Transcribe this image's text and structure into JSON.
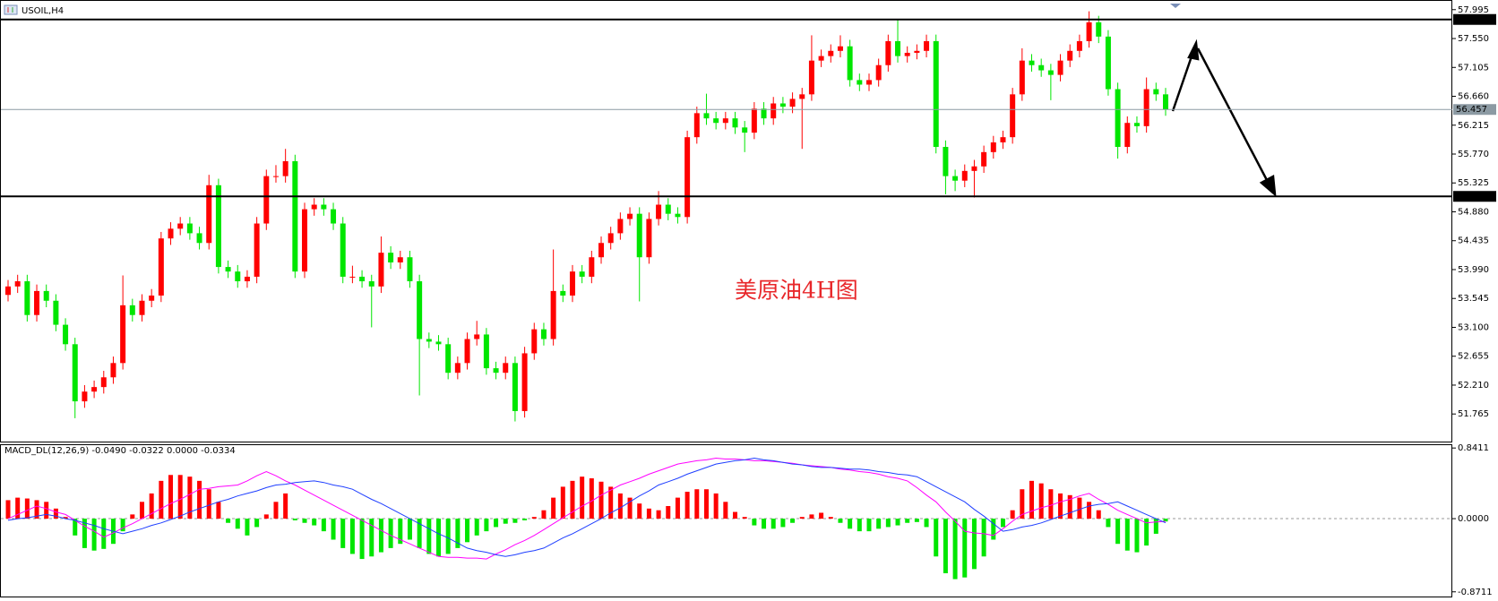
{
  "chart_data": [
    {
      "type": "candlestick",
      "title": "USOIL,H4",
      "annotation": "美原油4H图",
      "up_color": "#ff0000",
      "down_color": "#00e600",
      "ylim": [
        51.34,
        58.13
      ],
      "yticks": [
        57.995,
        {
          "value": 57.55,
          "label": "57.550"
        },
        57.105,
        {
          "value": 56.66,
          "label": "56.660"
        },
        56.215,
        {
          "value": 55.77,
          "label": "55.770"
        },
        55.325,
        {
          "value": 54.88,
          "label": "54.880"
        },
        54.435,
        {
          "value": 53.99,
          "label": "53.990"
        },
        53.545,
        {
          "value": 53.1,
          "label": "53.100"
        },
        52.655,
        {
          "value": 52.21,
          "label": "52.210"
        },
        51.765
      ],
      "levels": [
        57.844,
        55.118
      ],
      "current_price": 56.457,
      "values": [
        [
          53.6,
          53.83,
          53.5,
          53.73
        ],
        [
          53.73,
          53.91,
          53.63,
          53.81
        ],
        [
          53.81,
          53.91,
          53.19,
          53.29
        ],
        [
          53.29,
          53.76,
          53.19,
          53.66
        ],
        [
          53.66,
          53.76,
          53.41,
          53.51
        ],
        [
          53.51,
          53.61,
          53.04,
          53.14
        ],
        [
          53.14,
          53.24,
          52.74,
          52.84
        ],
        [
          52.84,
          52.94,
          51.7,
          51.96
        ],
        [
          51.96,
          52.21,
          51.86,
          52.11
        ],
        [
          52.11,
          52.28,
          52.01,
          52.18
        ],
        [
          52.18,
          52.43,
          52.08,
          52.33
        ],
        [
          52.33,
          52.65,
          52.23,
          52.55
        ],
        [
          52.55,
          53.9,
          52.45,
          53.44
        ],
        [
          53.44,
          53.54,
          53.19,
          53.29
        ],
        [
          53.29,
          53.61,
          53.19,
          53.51
        ],
        [
          53.51,
          53.69,
          53.41,
          53.59
        ],
        [
          53.59,
          54.57,
          53.49,
          54.47
        ],
        [
          54.47,
          54.72,
          54.37,
          54.62
        ],
        [
          54.62,
          54.8,
          54.52,
          54.7
        ],
        [
          54.7,
          54.8,
          54.45,
          54.55
        ],
        [
          54.55,
          54.65,
          54.3,
          54.4
        ],
        [
          54.4,
          55.45,
          54.3,
          55.29
        ],
        [
          55.29,
          55.39,
          53.93,
          54.03
        ],
        [
          54.03,
          54.13,
          53.86,
          53.96
        ],
        [
          53.96,
          54.06,
          53.71,
          53.81
        ],
        [
          53.81,
          53.98,
          53.71,
          53.88
        ],
        [
          53.88,
          54.8,
          53.78,
          54.7
        ],
        [
          54.7,
          55.53,
          54.6,
          55.43
        ],
        [
          55.43,
          55.6,
          55.33,
          55.43
        ],
        [
          55.43,
          55.85,
          55.33,
          55.66
        ],
        [
          55.66,
          55.76,
          53.86,
          53.96
        ],
        [
          53.96,
          55.02,
          53.86,
          54.92
        ],
        [
          54.92,
          55.09,
          54.82,
          54.99
        ],
        [
          54.99,
          55.09,
          54.82,
          54.92
        ],
        [
          54.92,
          55.02,
          54.6,
          54.7
        ],
        [
          54.7,
          54.8,
          53.78,
          53.88
        ],
        [
          53.88,
          54.05,
          53.78,
          53.88
        ],
        [
          53.88,
          53.98,
          53.71,
          53.81
        ],
        [
          53.81,
          53.91,
          53.1,
          53.73
        ],
        [
          53.73,
          54.5,
          53.63,
          54.25
        ],
        [
          54.25,
          54.35,
          54.0,
          54.1
        ],
        [
          54.1,
          54.28,
          54.0,
          54.18
        ],
        [
          54.18,
          54.28,
          53.71,
          53.81
        ],
        [
          53.81,
          53.91,
          52.05,
          52.92
        ],
        [
          52.92,
          53.02,
          52.78,
          52.88
        ],
        [
          52.88,
          52.98,
          52.74,
          52.84
        ],
        [
          52.84,
          52.94,
          52.3,
          52.4
        ],
        [
          52.4,
          52.65,
          52.3,
          52.55
        ],
        [
          52.55,
          53.02,
          52.45,
          52.92
        ],
        [
          52.92,
          53.2,
          52.82,
          52.99
        ],
        [
          52.99,
          53.09,
          52.37,
          52.47
        ],
        [
          52.47,
          52.57,
          52.3,
          52.4
        ],
        [
          52.4,
          52.65,
          52.3,
          52.55
        ],
        [
          52.55,
          52.65,
          51.65,
          51.81
        ],
        [
          51.81,
          52.8,
          51.71,
          52.7
        ],
        [
          52.7,
          53.17,
          52.6,
          53.07
        ],
        [
          53.07,
          53.17,
          52.82,
          52.92
        ],
        [
          52.92,
          54.3,
          52.82,
          53.66
        ],
        [
          53.66,
          53.76,
          53.49,
          53.59
        ],
        [
          53.59,
          54.06,
          53.49,
          53.96
        ],
        [
          53.96,
          54.06,
          53.78,
          53.88
        ],
        [
          53.88,
          54.28,
          53.78,
          54.18
        ],
        [
          54.18,
          54.5,
          54.08,
          54.4
        ],
        [
          54.4,
          54.65,
          54.3,
          54.55
        ],
        [
          54.55,
          54.87,
          54.45,
          54.77
        ],
        [
          54.77,
          54.95,
          54.67,
          54.85
        ],
        [
          54.85,
          54.95,
          53.5,
          54.18
        ],
        [
          54.18,
          54.87,
          54.08,
          54.77
        ],
        [
          54.77,
          55.2,
          54.67,
          54.99
        ],
        [
          54.99,
          55.09,
          54.75,
          54.85
        ],
        [
          54.85,
          54.95,
          54.7,
          54.8
        ],
        [
          54.8,
          56.13,
          54.7,
          56.03
        ],
        [
          56.03,
          56.5,
          55.93,
          56.4
        ],
        [
          56.4,
          56.7,
          56.22,
          56.32
        ],
        [
          56.32,
          56.42,
          56.15,
          56.25
        ],
        [
          56.25,
          56.42,
          56.15,
          56.32
        ],
        [
          56.32,
          56.42,
          56.08,
          56.18
        ],
        [
          56.18,
          56.28,
          55.8,
          56.1
        ],
        [
          56.1,
          56.57,
          56.0,
          56.47
        ],
        [
          56.47,
          56.57,
          56.22,
          56.32
        ],
        [
          56.32,
          56.65,
          56.22,
          56.55
        ],
        [
          56.55,
          56.65,
          56.4,
          56.5
        ],
        [
          56.5,
          56.72,
          56.4,
          56.62
        ],
        [
          56.62,
          56.79,
          55.85,
          56.69
        ],
        [
          56.69,
          57.6,
          56.59,
          57.21
        ],
        [
          57.21,
          57.38,
          57.11,
          57.28
        ],
        [
          57.28,
          57.46,
          57.18,
          57.36
        ],
        [
          57.36,
          57.6,
          57.26,
          57.43
        ],
        [
          57.43,
          57.53,
          56.81,
          56.91
        ],
        [
          56.91,
          57.01,
          56.74,
          56.84
        ],
        [
          56.84,
          57.01,
          56.74,
          56.91
        ],
        [
          56.91,
          57.24,
          56.81,
          57.14
        ],
        [
          57.14,
          57.61,
          57.04,
          57.51
        ],
        [
          57.51,
          57.85,
          57.18,
          57.28
        ],
        [
          57.28,
          57.43,
          57.18,
          57.33
        ],
        [
          57.33,
          57.46,
          57.23,
          57.36
        ],
        [
          57.36,
          57.61,
          57.26,
          57.51
        ],
        [
          57.51,
          57.61,
          55.78,
          55.88
        ],
        [
          55.88,
          55.98,
          55.15,
          55.43
        ],
        [
          55.43,
          55.53,
          55.2,
          55.36
        ],
        [
          55.36,
          55.61,
          55.26,
          55.51
        ],
        [
          55.51,
          55.68,
          55.1,
          55.58
        ],
        [
          55.58,
          55.9,
          55.48,
          55.8
        ],
        [
          55.8,
          56.05,
          55.7,
          55.95
        ],
        [
          55.95,
          56.13,
          55.85,
          56.03
        ],
        [
          56.03,
          56.79,
          55.93,
          56.69
        ],
        [
          56.69,
          57.4,
          56.59,
          57.21
        ],
        [
          57.21,
          57.31,
          57.04,
          57.14
        ],
        [
          57.14,
          57.24,
          56.96,
          57.06
        ],
        [
          57.06,
          57.16,
          56.6,
          56.99
        ],
        [
          56.99,
          57.31,
          56.89,
          57.21
        ],
        [
          57.21,
          57.46,
          57.11,
          57.36
        ],
        [
          57.36,
          57.61,
          57.26,
          57.51
        ],
        [
          57.51,
          57.97,
          57.41,
          57.8
        ],
        [
          57.8,
          57.9,
          57.48,
          57.58
        ],
        [
          57.58,
          57.68,
          56.67,
          56.77
        ],
        [
          56.77,
          56.87,
          55.7,
          55.88
        ],
        [
          55.88,
          56.35,
          55.78,
          56.25
        ],
        [
          56.25,
          56.35,
          56.1,
          56.2
        ],
        [
          56.2,
          56.95,
          56.1,
          56.77
        ],
        [
          56.77,
          56.87,
          56.59,
          56.69
        ],
        [
          56.69,
          56.79,
          56.36,
          56.46
        ]
      ]
    },
    {
      "type": "macd",
      "title": "MACD_DL(12,26,9) -0.0490 -0.0322 0.0000 -0.0334",
      "ylim": [
        -0.927,
        0.875
      ],
      "yticks": [
        0.8411,
        {
          "value": 0,
          "label": "0.0000"
        },
        -0.8711
      ],
      "histogram": {
        "up_color": "#ff0000",
        "down_color": "#00e600",
        "values": [
          0.22,
          0.25,
          0.24,
          0.22,
          0.2,
          0.12,
          0.02,
          -0.2,
          -0.35,
          -0.38,
          -0.36,
          -0.3,
          -0.15,
          0.05,
          0.2,
          0.3,
          0.45,
          0.52,
          0.52,
          0.5,
          0.45,
          0.35,
          0.2,
          -0.05,
          -0.12,
          -0.2,
          -0.1,
          0.05,
          0.2,
          0.3,
          -0.02,
          -0.05,
          -0.08,
          -0.15,
          -0.25,
          -0.35,
          -0.42,
          -0.48,
          -0.45,
          -0.4,
          -0.35,
          -0.3,
          -0.25,
          -0.35,
          -0.42,
          -0.45,
          -0.42,
          -0.35,
          -0.28,
          -0.2,
          -0.15,
          -0.1,
          -0.06,
          -0.05,
          -0.02,
          0.02,
          0.1,
          0.25,
          0.38,
          0.45,
          0.5,
          0.48,
          0.44,
          0.38,
          0.3,
          0.25,
          0.18,
          0.12,
          0.1,
          0.15,
          0.25,
          0.32,
          0.35,
          0.35,
          0.3,
          0.2,
          0.08,
          0.02,
          -0.08,
          -0.12,
          -0.12,
          -0.1,
          -0.05,
          0.02,
          0.05,
          0.07,
          0.02,
          -0.05,
          -0.12,
          -0.15,
          -0.15,
          -0.12,
          -0.1,
          -0.08,
          -0.05,
          -0.04,
          -0.1,
          -0.45,
          -0.65,
          -0.72,
          -0.7,
          -0.6,
          -0.45,
          -0.25,
          -0.1,
          0.1,
          0.35,
          0.45,
          0.42,
          0.35,
          0.3,
          0.28,
          0.25,
          0.2,
          0.1,
          -0.1,
          -0.3,
          -0.38,
          -0.4,
          -0.32,
          -0.18,
          -0.0334
        ]
      },
      "series": [
        {
          "color": "#ff00ff",
          "values": [
            0.0,
            0.05,
            0.1,
            0.15,
            0.12,
            0.08,
            0.05,
            -0.02,
            -0.09,
            -0.15,
            -0.22,
            -0.17,
            -0.11,
            -0.06,
            0.0,
            0.06,
            0.12,
            0.18,
            0.23,
            0.29,
            0.35,
            0.36,
            0.38,
            0.39,
            0.4,
            0.45,
            0.51,
            0.56,
            0.51,
            0.45,
            0.4,
            0.34,
            0.28,
            0.22,
            0.16,
            0.1,
            0.04,
            -0.02,
            -0.08,
            -0.14,
            -0.2,
            -0.25,
            -0.3,
            -0.35,
            -0.4,
            -0.45,
            -0.46,
            -0.46,
            -0.47,
            -0.47,
            -0.48,
            -0.42,
            -0.37,
            -0.31,
            -0.26,
            -0.2,
            -0.13,
            -0.06,
            0.01,
            0.08,
            0.15,
            0.21,
            0.28,
            0.34,
            0.4,
            0.44,
            0.48,
            0.53,
            0.57,
            0.61,
            0.65,
            0.67,
            0.69,
            0.7,
            0.72,
            0.71,
            0.71,
            0.7,
            0.69,
            0.69,
            0.68,
            0.67,
            0.66,
            0.64,
            0.63,
            0.62,
            0.61,
            0.59,
            0.58,
            0.56,
            0.55,
            0.53,
            0.5,
            0.48,
            0.45,
            0.37,
            0.28,
            0.2,
            0.08,
            -0.03,
            -0.15,
            -0.17,
            -0.18,
            -0.2,
            -0.12,
            -0.03,
            0.05,
            0.09,
            0.13,
            0.16,
            0.2,
            0.23,
            0.27,
            0.3,
            0.23,
            0.17,
            0.1,
            0.05,
            0.0,
            -0.05,
            -0.04,
            -0.0322
          ]
        },
        {
          "color": "#1f3fff",
          "values": [
            -0.02,
            0.0,
            0.01,
            0.03,
            0.05,
            0.03,
            0.0,
            -0.02,
            -0.05,
            -0.08,
            -0.12,
            -0.15,
            -0.18,
            -0.15,
            -0.12,
            -0.08,
            -0.05,
            -0.01,
            0.03,
            0.08,
            0.12,
            0.16,
            0.2,
            0.23,
            0.27,
            0.3,
            0.33,
            0.37,
            0.4,
            0.41,
            0.43,
            0.44,
            0.45,
            0.43,
            0.4,
            0.38,
            0.35,
            0.29,
            0.23,
            0.18,
            0.12,
            0.06,
            0.0,
            -0.06,
            -0.12,
            -0.18,
            -0.23,
            -0.29,
            -0.35,
            -0.38,
            -0.4,
            -0.43,
            -0.45,
            -0.43,
            -0.4,
            -0.38,
            -0.35,
            -0.29,
            -0.23,
            -0.18,
            -0.12,
            -0.06,
            0.0,
            0.07,
            0.13,
            0.2,
            0.27,
            0.33,
            0.4,
            0.44,
            0.48,
            0.53,
            0.57,
            0.61,
            0.65,
            0.67,
            0.69,
            0.7,
            0.72,
            0.7,
            0.69,
            0.67,
            0.65,
            0.64,
            0.62,
            0.61,
            0.61,
            0.6,
            0.59,
            0.59,
            0.58,
            0.56,
            0.55,
            0.53,
            0.52,
            0.5,
            0.44,
            0.38,
            0.32,
            0.26,
            0.2,
            0.11,
            0.03,
            -0.06,
            -0.15,
            -0.13,
            -0.1,
            -0.08,
            -0.05,
            -0.01,
            0.03,
            0.07,
            0.11,
            0.15,
            0.17,
            0.18,
            0.2,
            0.15,
            0.1,
            0.05,
            0.0,
            -0.049
          ]
        }
      ]
    }
  ]
}
